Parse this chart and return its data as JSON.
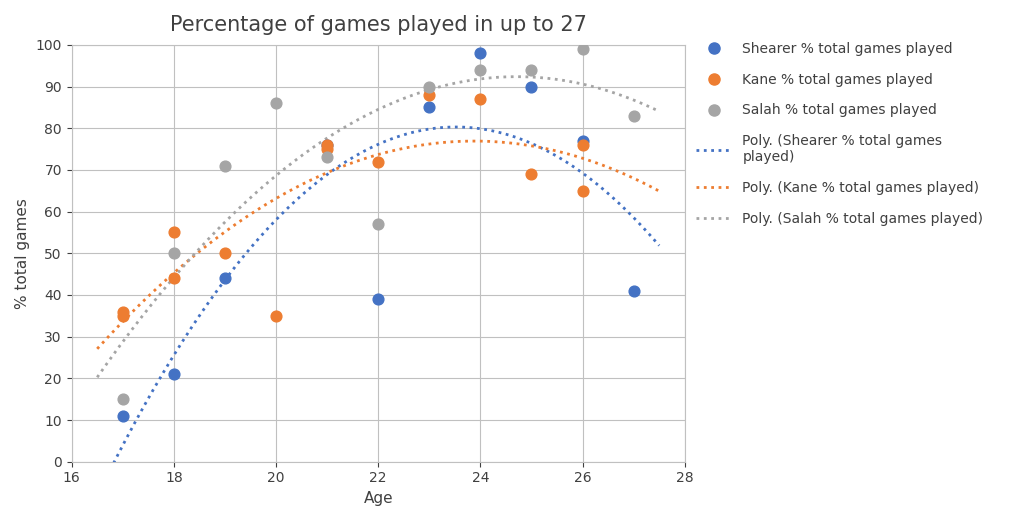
{
  "title": "Percentage of games played in up to 27",
  "xlabel": "Age",
  "ylabel": "% total games",
  "xlim": [
    16,
    28
  ],
  "ylim": [
    0,
    100
  ],
  "xticks": [
    16,
    18,
    20,
    22,
    24,
    26,
    28
  ],
  "yticks": [
    0,
    10,
    20,
    30,
    40,
    50,
    60,
    70,
    80,
    90,
    100
  ],
  "bg_color": "#ffffff",
  "plot_bg_color": "#ffffff",
  "text_color": "#404040",
  "grid_color": "#c0c0c0",
  "shearer_color": "#4472C4",
  "kane_color": "#ED7D31",
  "salah_color": "#A5A5A5",
  "shearer_ages": [
    17,
    18,
    19,
    21,
    22,
    23,
    24,
    25,
    26,
    27
  ],
  "shearer_pct": [
    11,
    21,
    44,
    76,
    39,
    85,
    98,
    90,
    77,
    41
  ],
  "kane_ages": [
    17,
    17,
    18,
    18,
    19,
    20,
    21,
    21,
    22,
    23,
    24,
    25,
    26,
    26
  ],
  "kane_pct": [
    35,
    36,
    44,
    55,
    50,
    35,
    75,
    76,
    72,
    88,
    87,
    69,
    65,
    76
  ],
  "salah_ages": [
    17,
    18,
    19,
    20,
    21,
    22,
    23,
    24,
    25,
    26,
    27
  ],
  "salah_pct": [
    15,
    50,
    71,
    86,
    73,
    57,
    90,
    94,
    94,
    99,
    83
  ],
  "legend_labels_dots": [
    "Shearer % total games played",
    "Kane % total games played",
    "Salah % total games played"
  ],
  "legend_labels_poly": [
    "Poly. (Shearer % total games\nplayed)",
    "Poly. (Kane % total games played)",
    "Poly. (Salah % total games played)"
  ],
  "dot_size": 60,
  "poly_degree": 2,
  "title_fontsize": 15,
  "axis_fontsize": 11,
  "legend_fontsize": 10,
  "tick_fontsize": 10
}
